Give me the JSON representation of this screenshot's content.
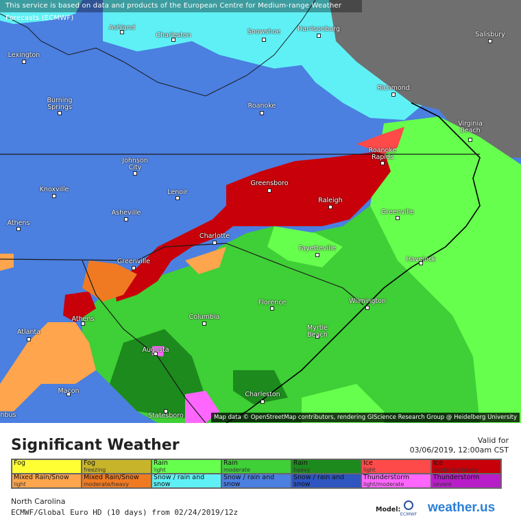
{
  "banner": "This service is based on data and products of the European Centre for Medium-range Weather Forecasts (ECMWF)",
  "map_credit": "Map data © OpenStreetMap contributors, rendering GIScience Research Group @ Heidelberg University",
  "cities": [
    {
      "name": "Ashland"
    },
    {
      "name": "Charleston"
    },
    {
      "name": "Snowshoe"
    },
    {
      "name": "Harrisonburg"
    },
    {
      "name": "Salisbury"
    },
    {
      "name": "Lexington"
    },
    {
      "name": "Burning\nSprings"
    },
    {
      "name": "Roanoke"
    },
    {
      "name": "Richmond"
    },
    {
      "name": "Virginia\nBeach"
    },
    {
      "name": "Roanoke\nRapids"
    },
    {
      "name": "Johnson\nCity"
    },
    {
      "name": "Greensboro"
    },
    {
      "name": "Knoxville"
    },
    {
      "name": "Lenoir"
    },
    {
      "name": "Raleigh"
    },
    {
      "name": "Asheville"
    },
    {
      "name": "Greenville"
    },
    {
      "name": "Athens"
    },
    {
      "name": "Charlotte"
    },
    {
      "name": "Fayetteville"
    },
    {
      "name": "Havelock"
    },
    {
      "name": "Greenville"
    },
    {
      "name": "Wilmington"
    },
    {
      "name": "Athens"
    },
    {
      "name": "Florence"
    },
    {
      "name": "Columbia"
    },
    {
      "name": "Myrtle\nBeach"
    },
    {
      "name": "Atlanta"
    },
    {
      "name": "Augusta"
    },
    {
      "name": "Macon"
    },
    {
      "name": "Charleston"
    },
    {
      "name": "Statesboro"
    },
    {
      "name": "nbus"
    }
  ],
  "title": "Significant Weather",
  "valid_label": "Valid for",
  "valid_date": "03/06/2019, 12:00am CST",
  "legend": [
    {
      "label": "Fog",
      "sub": "",
      "color": "#ffff33"
    },
    {
      "label": "Fog",
      "sub": "freezing",
      "color": "#c8b42a"
    },
    {
      "label": "Rain",
      "sub": "light",
      "color": "#66ff4d"
    },
    {
      "label": "Rain",
      "sub": "moderate",
      "color": "#3fcf36"
    },
    {
      "label": "Rain",
      "sub": "heavy",
      "color": "#1d8a1d"
    },
    {
      "label": "Ice",
      "sub": "light",
      "color": "#ff4a4a"
    },
    {
      "label": "Ice",
      "sub": "moderate/heavy",
      "color": "#c8000a"
    },
    {
      "label": "Mixed Rain/Snow",
      "sub": "light",
      "color": "#ffa54d"
    },
    {
      "label": "Mixed Rain/Snow",
      "sub": "moderate/heavy",
      "color": "#f07a22"
    },
    {
      "label": "Snow / rain and snow",
      "sub": "light",
      "color": "#5ff0f5"
    },
    {
      "label": "Snow / rain and snow",
      "sub": "moderate",
      "color": "#4b7fe0"
    },
    {
      "label": "Snow / rain and snow",
      "sub": "heavy",
      "color": "#2e55c0"
    },
    {
      "label": "Thunderstorm",
      "sub": "light/moderate",
      "color": "#ff66ff"
    },
    {
      "label": "Thunderstorm",
      "sub": "severe",
      "color": "#b81ec8"
    }
  ],
  "region": "North Carolina",
  "model_run": "ECMWF/Global Euro HD (10 days) from 02/24/2019/12z",
  "model_label": "Model:",
  "logo_icon_text": "ECMWF",
  "logo_text": "weather.us",
  "colors": {
    "snow_moderate": "#4b7fe0",
    "snow_light": "#5ff0f5",
    "no_precip": "#6f6f6f",
    "rain_light": "#66ff4d",
    "rain_moderate": "#3fcf36",
    "rain_heavy": "#1d8a1d",
    "ice_light": "#ff4a4a",
    "ice_heavy": "#c8000a",
    "mix_light": "#ffa54d",
    "mix_heavy": "#f07a22",
    "thunder": "#ff66ff"
  }
}
